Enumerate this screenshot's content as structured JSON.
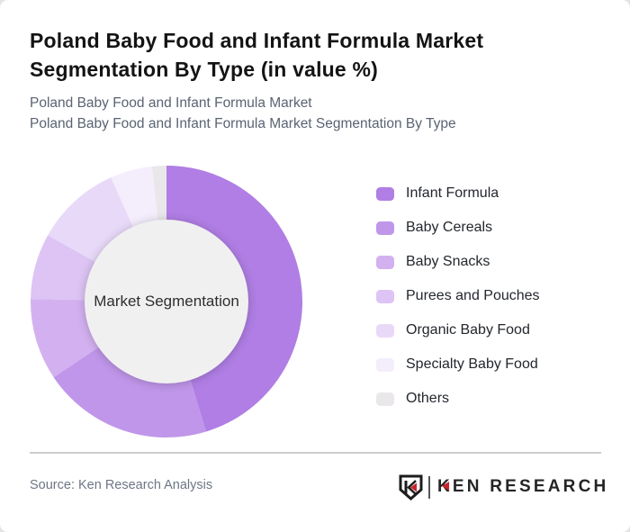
{
  "header": {
    "title": "Poland Baby Food and Infant Formula Market Segmentation By Type (in value %)",
    "subtitle_line1": "Poland Baby Food and Infant Formula Market",
    "subtitle_line2": "Poland Baby Food and Infant Formula Market Segmentation By Type"
  },
  "chart_data": {
    "type": "pie",
    "variant": "donut",
    "title": "Poland Baby Food and Infant Formula Market Segmentation By Type (in value %)",
    "center_label": "Market Segmentation",
    "categories": [
      "Infant Formula",
      "Baby Cereals",
      "Baby Snacks",
      "Purees and Pouches",
      "Organic Baby Food",
      "Specialty Baby Food",
      "Others"
    ],
    "values": [
      45.3,
      20.3,
      9.7,
      7.8,
      10.2,
      5.0,
      1.7
    ],
    "unit": "value %",
    "colors": [
      "#b07ee4",
      "#c096ea",
      "#d3b1f0",
      "#ddc4f4",
      "#e9d9f9",
      "#f4edfc",
      "#e9e7ea"
    ],
    "center_circle_color": "#f1f0f1",
    "start_angle_deg": 0,
    "direction": "clockwise",
    "legend_position": "right",
    "data_labels_shown": false
  },
  "footer": {
    "source_text": "Source: Ken Research Analysis",
    "logo": {
      "brand": "KEN RESEARCH",
      "accent_color": "#c6232b"
    }
  }
}
